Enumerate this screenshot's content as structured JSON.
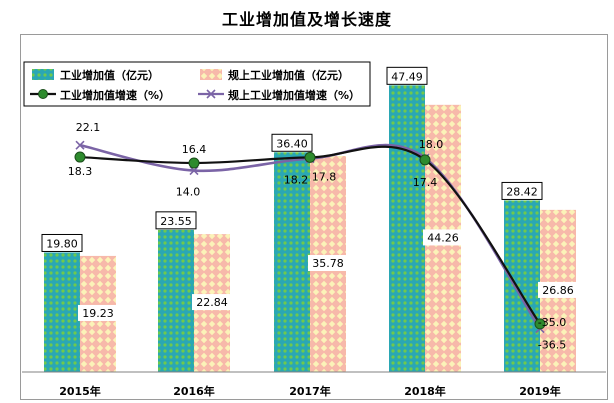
{
  "title": "工业增加值及增长速度",
  "chart_data": {
    "type": "bar",
    "categories": [
      "2015年",
      "2016年",
      "2017年",
      "2018年",
      "2019年"
    ],
    "ylim": [
      0,
      55
    ],
    "series": [
      {
        "name": "工业增加值（亿元）",
        "kind": "bar",
        "color": "#2aa7b4",
        "pattern": "cyan-green-dot",
        "values": [
          19.8,
          23.55,
          36.4,
          47.49,
          28.42
        ],
        "labels": [
          "19.80",
          "23.55",
          "36.40",
          "47.49",
          "28.42"
        ]
      },
      {
        "name": "规上工业增加值（亿元）",
        "kind": "bar",
        "color": "#f6b8a8",
        "pattern": "pink-yellow-dot",
        "values": [
          19.23,
          22.84,
          35.78,
          44.26,
          26.86
        ],
        "labels": [
          "19.23",
          "22.84",
          "35.78",
          "44.26",
          "26.86"
        ]
      },
      {
        "name": "工业增加值增速（%）",
        "kind": "line",
        "color": "#111111",
        "marker": "green-circle",
        "values": [
          18.3,
          16.4,
          18.2,
          17.4,
          -35.0
        ],
        "labels": [
          "18.3",
          "16.4",
          "18.2",
          "17.4",
          "-35.0"
        ]
      },
      {
        "name": "规上工业增加值增速（%）",
        "kind": "line",
        "color": "#7b64a6",
        "marker": "x",
        "values": [
          22.1,
          14.0,
          17.8,
          18.0,
          -36.5
        ],
        "labels": [
          "22.1",
          "14.0",
          "17.8",
          "18.0",
          "-36.5"
        ]
      }
    ],
    "legend_position": "top-left",
    "grid": false
  }
}
